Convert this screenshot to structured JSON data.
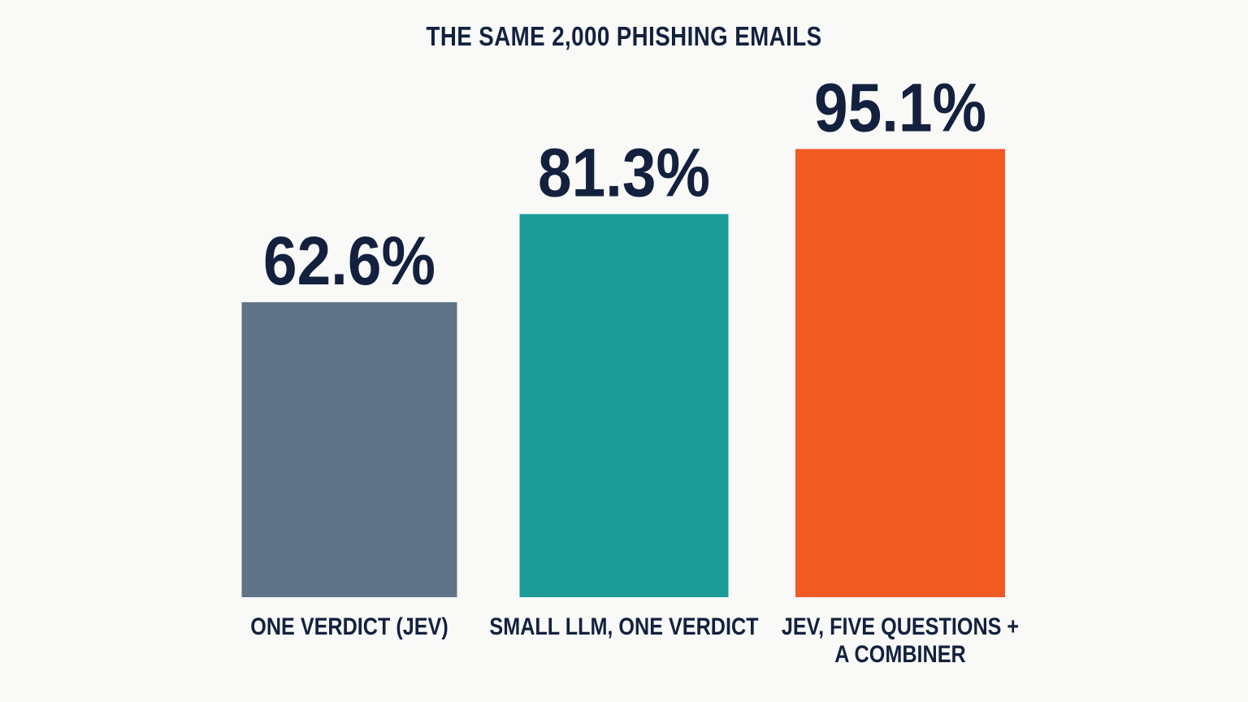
{
  "chart_data": {
    "type": "bar",
    "title": "THE SAME 2,000 PHISHING EMAILS",
    "xlabel": "",
    "ylabel": "",
    "ylim": [
      0,
      100
    ],
    "grid": false,
    "categories": [
      [
        "ONE VERDICT (JEV)"
      ],
      [
        "SMALL LLM, ONE VERDICT"
      ],
      [
        "JEV, FIVE QUESTIONS +",
        "A COMBINER"
      ]
    ],
    "values": [
      62.6,
      81.3,
      95.1
    ],
    "value_labels": [
      "62.6%",
      "81.3%",
      "95.1%"
    ],
    "colors": [
      "#5f7486",
      "#1d9b99",
      "#f15a22"
    ]
  }
}
